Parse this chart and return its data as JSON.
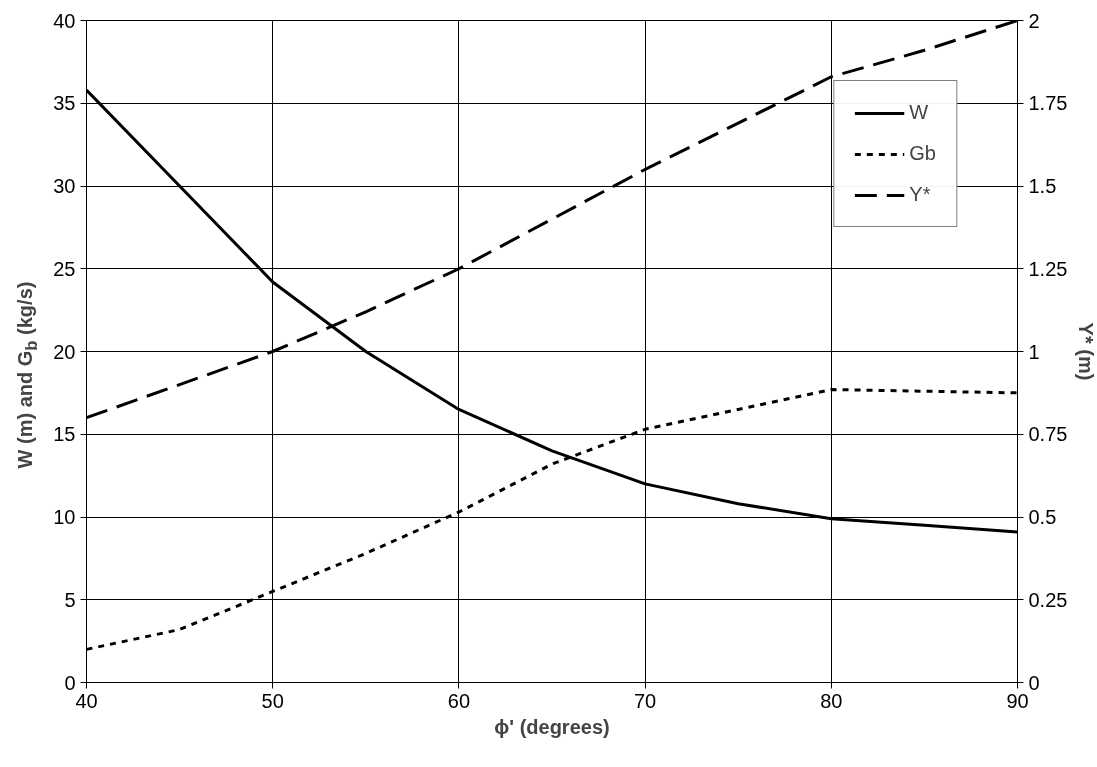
{
  "chart_data": {
    "type": "line",
    "xlabel": "ϕ' (degrees)",
    "ylabel": "W (m) and G$_{b}$ (kg/s)",
    "y2label": "Y* (m)",
    "x": [
      40,
      45,
      50,
      55,
      60,
      65,
      70,
      75,
      80,
      85,
      90
    ],
    "series": [
      {
        "name": "W",
        "color": "#000000",
        "line_style": "solid",
        "values": [
          35.8,
          30,
          24.2,
          20,
          16.5,
          14,
          12,
          10.8,
          9.9,
          9.5,
          9.1
        ]
      },
      {
        "name": "Gb",
        "color": "#000000",
        "line_style": "dotted",
        "values": [
          2,
          3.2,
          5.5,
          7.8,
          10.3,
          13.2,
          15.3,
          16.5,
          17.7,
          17.6,
          17.5
        ]
      },
      {
        "name": "Y*",
        "color": "#000000",
        "line_style": "dashed",
        "axis": "y2",
        "values": [
          0.8,
          0.9,
          1.0,
          1.12,
          1.25,
          1.4,
          1.55,
          1.69,
          1.83,
          1.91,
          2.0
        ]
      }
    ],
    "xlim": [
      40,
      90
    ],
    "xticks": [
      40,
      50,
      60,
      70,
      80,
      90
    ],
    "ylim": [
      0,
      40
    ],
    "yticks": [
      0,
      5,
      10,
      15,
      20,
      25,
      30,
      35,
      40
    ],
    "y2lim": [
      0,
      2
    ],
    "y2ticks": [
      0,
      0.25,
      0.5,
      0.75,
      1,
      1.25,
      1.5,
      1.75,
      2
    ],
    "grid": true,
    "legend": "top right",
    "marker": "none"
  }
}
